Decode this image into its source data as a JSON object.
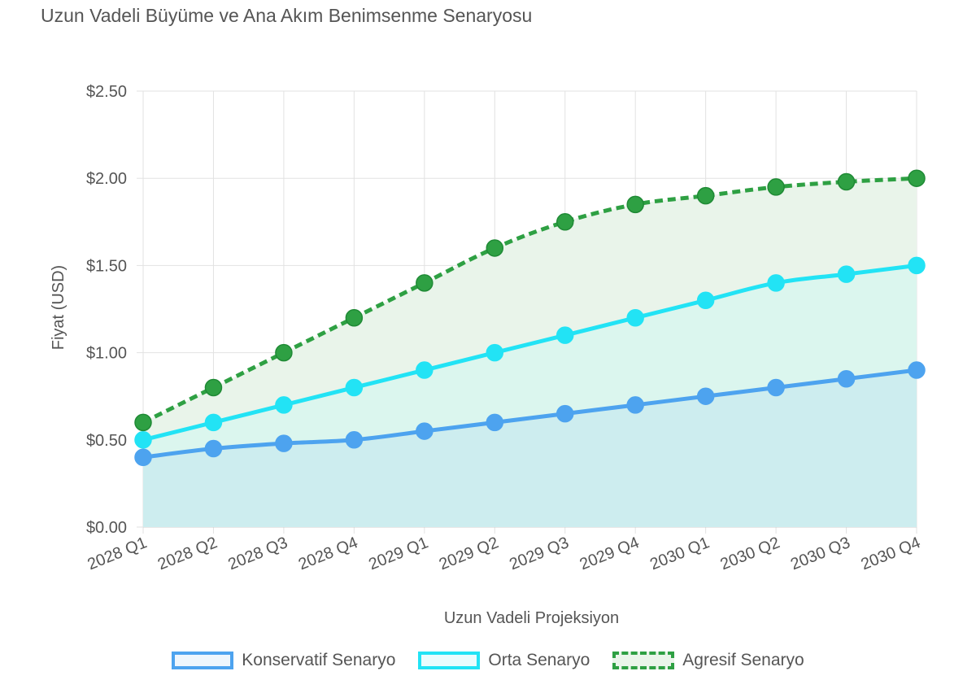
{
  "title": "Uzun Vadeli Büyüme ve Ana Akım Benimsenme Senaryosu",
  "chart_data": {
    "type": "line",
    "title": "Uzun Vadeli Büyüme ve Ana Akım Benimsenme Senaryosu",
    "xlabel": "Uzun Vadeli Projeksiyon",
    "ylabel": "Fiyat (USD)",
    "categories": [
      "2028 Q1",
      "2028 Q2",
      "2028 Q3",
      "2028 Q4",
      "2029 Q1",
      "2029 Q2",
      "2029 Q3",
      "2029 Q4",
      "2030 Q1",
      "2030 Q2",
      "2030 Q3",
      "2030 Q4"
    ],
    "ylim": [
      0,
      2.5
    ],
    "yticks": [
      0,
      0.5,
      1.0,
      1.5,
      2.0,
      2.5
    ],
    "ytick_labels": [
      "$0.00",
      "$0.50",
      "$1.00",
      "$1.50",
      "$2.00",
      "$2.50"
    ],
    "grid": true,
    "legend_position": "bottom",
    "series": [
      {
        "name": "Konservatif Senaryo",
        "values": [
          0.4,
          0.45,
          0.48,
          0.5,
          0.55,
          0.6,
          0.65,
          0.7,
          0.75,
          0.8,
          0.85,
          0.9
        ],
        "color": "#4da3ef",
        "fill": "#cdedef",
        "dashed": false
      },
      {
        "name": "Orta Senaryo",
        "values": [
          0.5,
          0.6,
          0.7,
          0.8,
          0.9,
          1.0,
          1.1,
          1.2,
          1.3,
          1.4,
          1.45,
          1.5
        ],
        "color": "#22e3f5",
        "fill": "#dbf6ee",
        "dashed": false
      },
      {
        "name": "Agresif Senaryo",
        "values": [
          0.6,
          0.8,
          1.0,
          1.2,
          1.4,
          1.6,
          1.75,
          1.85,
          1.9,
          1.95,
          1.98,
          2.0
        ],
        "color": "#2ea043",
        "fill": "#e9f4ea",
        "dashed": true
      }
    ]
  }
}
